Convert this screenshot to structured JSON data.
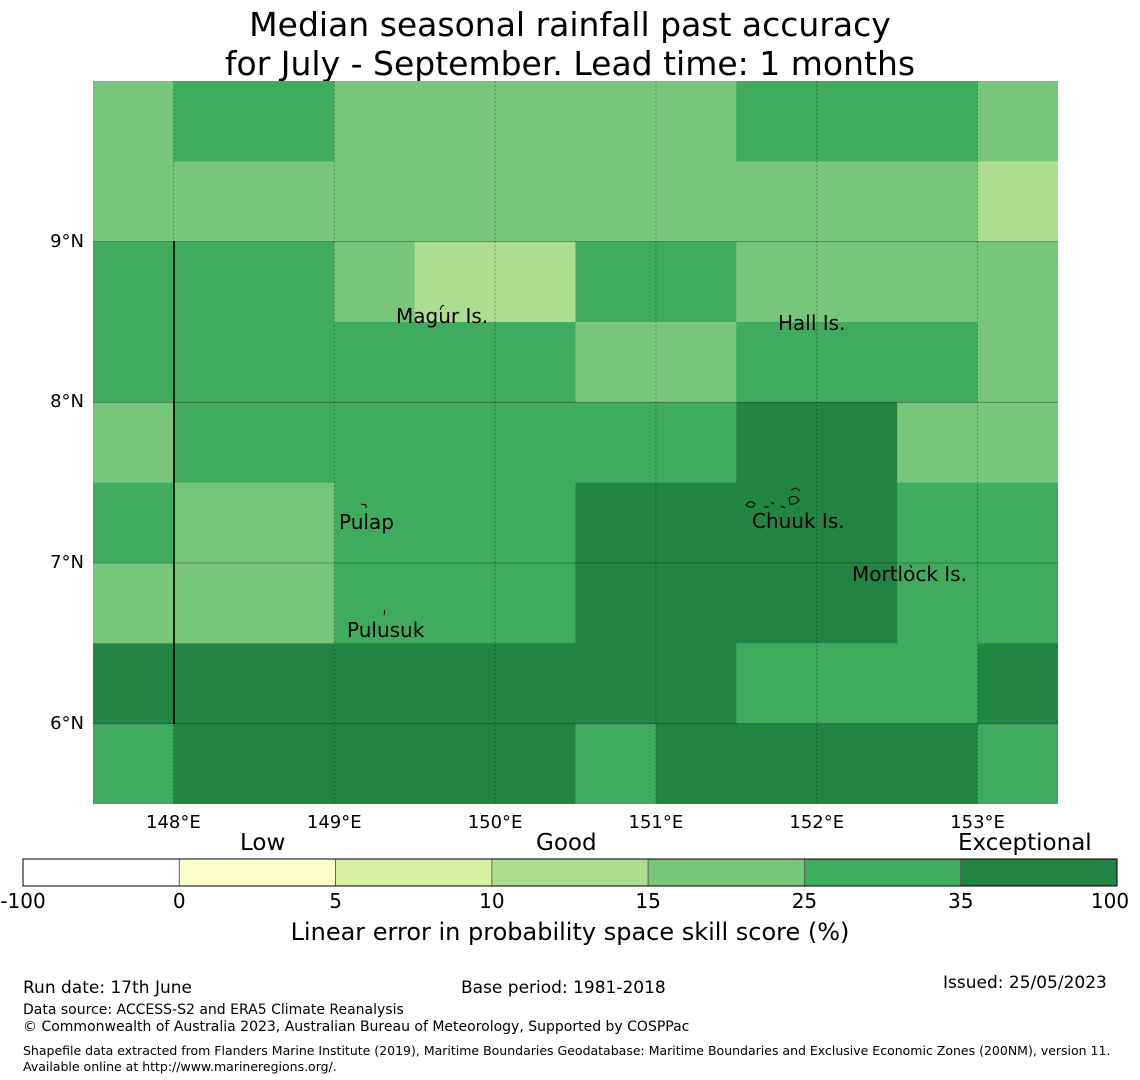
{
  "title": {
    "line1": "Median seasonal rainfall past accuracy",
    "line2": "for July - September. Lead time: 1 months"
  },
  "legend_scale": {
    "categories": [
      {
        "label": "Low",
        "range": [
          0,
          5
        ]
      },
      {
        "label": "Good",
        "range": [
          10,
          15
        ]
      },
      {
        "label": "Exceptional",
        "range": [
          35,
          100
        ]
      }
    ],
    "bins": [
      {
        "range": [
          -100,
          0
        ],
        "color": "#ffffff"
      },
      {
        "range": [
          0,
          5
        ],
        "color": "#ffffcc"
      },
      {
        "range": [
          5,
          10
        ],
        "color": "#d9f0a3"
      },
      {
        "range": [
          10,
          15
        ],
        "color": "#addd8e"
      },
      {
        "range": [
          15,
          25
        ],
        "color": "#78c679"
      },
      {
        "range": [
          25,
          35
        ],
        "color": "#41ab5d"
      },
      {
        "range": [
          35,
          100
        ],
        "color": "#238443"
      }
    ],
    "tick_labels": [
      "-100",
      "0",
      "5",
      "10",
      "15",
      "25",
      "35",
      "100"
    ],
    "label": "Linear error in probability space skill score (%)"
  },
  "map": {
    "lon_range": [
      147.5,
      153.5
    ],
    "lat_range": [
      5.5,
      10.0
    ],
    "lon_ticks": [
      148,
      149,
      150,
      151,
      152,
      153
    ],
    "lat_ticks": [
      6,
      7,
      8,
      9
    ],
    "lon_labels": [
      "148°E",
      "149°E",
      "150°E",
      "151°E",
      "152°E",
      "153°E"
    ],
    "lat_labels": [
      "6°N",
      "7°N",
      "8°N",
      "9°N"
    ],
    "islands": {
      "magur": "Magur Is.",
      "hall": "Hall Is.",
      "pulap": "Pulap",
      "chuuk": "Chuuk Is.",
      "mortlock": "Mortlock Is.",
      "pulusuk": "Pulusuk"
    }
  },
  "footer": {
    "run_date": "Run date: 17th June",
    "base_period": "Base period: 1981-2018",
    "issued": "Issued: 25/05/2023",
    "data_source": "Data source: ACCESS-S2 and ERA5 Climate Reanalysis",
    "copyright": "© Commonwealth of Australia 2023, Australian Bureau of Meteorology, Supported by COSPPac",
    "shapefile": "Shapefile data extracted from Flanders Marine Institute (2019), Maritime Boundaries Geodatabase: Maritime Boundaries and Exclusive Economic Zones (200NM), version 11. Available online at http://www.marineregions.org/."
  },
  "chart_data": {
    "type": "heatmap",
    "title": "Median seasonal rainfall past accuracy for July - September. Lead time: 1 months",
    "value_meaning": "LEPS skill score category (%) per grid cell",
    "cell_size_deg": 0.5,
    "x": [
      147.75,
      148.25,
      148.75,
      149.25,
      149.75,
      150.25,
      150.75,
      151.25,
      151.75,
      152.25,
      152.75,
      153.25
    ],
    "y": [
      9.75,
      9.25,
      8.75,
      8.25,
      7.75,
      7.25,
      6.75,
      6.25,
      5.75
    ],
    "grid_categories": [
      [
        3,
        4,
        4,
        3,
        3,
        3,
        3,
        3,
        4,
        4,
        4,
        3
      ],
      [
        3,
        3,
        3,
        3,
        3,
        3,
        3,
        3,
        3,
        3,
        3,
        2
      ],
      [
        4,
        4,
        4,
        3,
        2,
        2,
        4,
        4,
        3,
        3,
        3,
        3
      ],
      [
        4,
        4,
        4,
        4,
        4,
        4,
        3,
        3,
        4,
        4,
        4,
        3
      ],
      [
        3,
        4,
        4,
        4,
        4,
        4,
        4,
        4,
        5,
        5,
        3,
        3
      ],
      [
        4,
        3,
        3,
        4,
        4,
        4,
        5,
        5,
        5,
        5,
        4,
        4
      ],
      [
        3,
        3,
        3,
        4,
        4,
        4,
        5,
        5,
        5,
        5,
        4,
        4
      ],
      [
        5,
        5,
        5,
        5,
        5,
        5,
        5,
        5,
        4,
        4,
        4,
        5
      ],
      [
        4,
        5,
        5,
        5,
        5,
        5,
        4,
        5,
        5,
        5,
        5,
        4
      ]
    ],
    "category_index_meaning": {
      "2": "10-15",
      "3": "15-25",
      "4": "25-35",
      "5": "35-100"
    },
    "x_axis_labels": [
      "148°E",
      "149°E",
      "150°E",
      "151°E",
      "152°E",
      "153°E"
    ],
    "y_axis_labels": [
      "6°N",
      "7°N",
      "8°N",
      "9°N"
    ],
    "grid": true
  }
}
